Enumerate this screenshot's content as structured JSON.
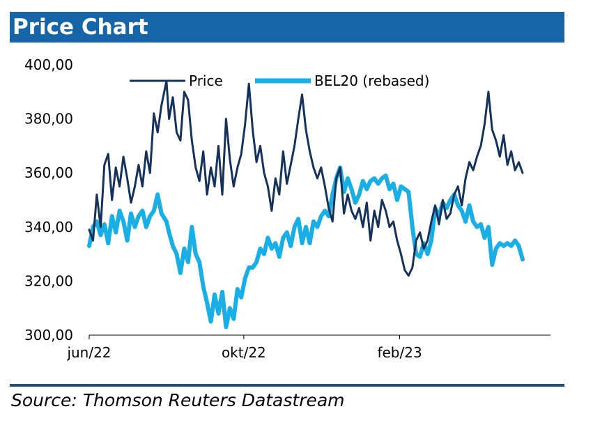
{
  "title": "Price Chart",
  "source": "Source: Thomson Reuters Datastream",
  "colors": {
    "title_bar": "#1565a8",
    "price": "#14325c",
    "bel20": "#18aee6",
    "rule": "#1f4e79"
  },
  "chart_data": {
    "type": "line",
    "ylim": [
      300,
      400
    ],
    "xlim": [
      "2022-06-01",
      "2023-05-31"
    ],
    "y_ticks": [
      "400,00",
      "380,00",
      "360,00",
      "340,00",
      "320,00",
      "300,00"
    ],
    "x_ticks": [
      {
        "label": "jun/22",
        "date": "2022-06-01"
      },
      {
        "label": "okt/22",
        "date": "2022-10-01"
      },
      {
        "label": "feb/23",
        "date": "2023-02-01"
      }
    ],
    "legend": "top",
    "grid": false,
    "series": [
      {
        "name": "Price",
        "color": "#14325c",
        "points": [
          [
            "2022-06-01",
            339
          ],
          [
            "2022-06-04",
            335
          ],
          [
            "2022-06-07",
            352
          ],
          [
            "2022-06-10",
            340
          ],
          [
            "2022-06-13",
            363
          ],
          [
            "2022-06-16",
            367
          ],
          [
            "2022-06-19",
            350
          ],
          [
            "2022-06-22",
            362
          ],
          [
            "2022-06-25",
            355
          ],
          [
            "2022-06-28",
            366
          ],
          [
            "2022-07-01",
            358
          ],
          [
            "2022-07-04",
            349
          ],
          [
            "2022-07-07",
            355
          ],
          [
            "2022-07-10",
            363
          ],
          [
            "2022-07-13",
            355
          ],
          [
            "2022-07-16",
            368
          ],
          [
            "2022-07-19",
            360
          ],
          [
            "2022-07-22",
            382
          ],
          [
            "2022-07-25",
            375
          ],
          [
            "2022-07-28",
            385
          ],
          [
            "2022-08-01",
            394
          ],
          [
            "2022-08-03",
            380
          ],
          [
            "2022-08-06",
            388
          ],
          [
            "2022-08-09",
            375
          ],
          [
            "2022-08-12",
            372
          ],
          [
            "2022-08-15",
            390
          ],
          [
            "2022-08-18",
            387
          ],
          [
            "2022-08-21",
            372
          ],
          [
            "2022-08-24",
            362
          ],
          [
            "2022-08-27",
            357
          ],
          [
            "2022-08-30",
            368
          ],
          [
            "2022-09-02",
            352
          ],
          [
            "2022-09-05",
            362
          ],
          [
            "2022-09-08",
            355
          ],
          [
            "2022-09-11",
            370
          ],
          [
            "2022-09-14",
            352
          ],
          [
            "2022-09-17",
            380
          ],
          [
            "2022-09-20",
            365
          ],
          [
            "2022-09-23",
            355
          ],
          [
            "2022-09-26",
            362
          ],
          [
            "2022-09-29",
            367
          ],
          [
            "2022-10-02",
            378
          ],
          [
            "2022-10-05",
            393
          ],
          [
            "2022-10-08",
            376
          ],
          [
            "2022-10-11",
            364
          ],
          [
            "2022-10-14",
            370
          ],
          [
            "2022-10-17",
            360
          ],
          [
            "2022-10-20",
            355
          ],
          [
            "2022-10-23",
            346
          ],
          [
            "2022-10-26",
            358
          ],
          [
            "2022-10-29",
            352
          ],
          [
            "2022-11-01",
            368
          ],
          [
            "2022-11-04",
            356
          ],
          [
            "2022-11-07",
            363
          ],
          [
            "2022-11-10",
            370
          ],
          [
            "2022-11-13",
            380
          ],
          [
            "2022-11-16",
            389
          ],
          [
            "2022-11-19",
            376
          ],
          [
            "2022-11-22",
            368
          ],
          [
            "2022-11-25",
            362
          ],
          [
            "2022-11-28",
            358
          ],
          [
            "2022-12-01",
            362
          ],
          [
            "2022-12-04",
            355
          ],
          [
            "2022-12-07",
            347
          ],
          [
            "2022-12-10",
            342
          ],
          [
            "2022-12-13",
            358
          ],
          [
            "2022-12-16",
            362
          ],
          [
            "2022-12-19",
            345
          ],
          [
            "2022-12-22",
            352
          ],
          [
            "2022-12-25",
            346
          ],
          [
            "2022-12-28",
            343
          ],
          [
            "2022-12-31",
            347
          ],
          [
            "2023-01-03",
            340
          ],
          [
            "2023-01-06",
            349
          ],
          [
            "2023-01-09",
            335
          ],
          [
            "2023-01-12",
            346
          ],
          [
            "2023-01-15",
            340
          ],
          [
            "2023-01-18",
            350
          ],
          [
            "2023-01-21",
            346
          ],
          [
            "2023-01-24",
            340
          ],
          [
            "2023-01-27",
            342
          ],
          [
            "2023-01-30",
            335
          ],
          [
            "2023-02-02",
            330
          ],
          [
            "2023-02-05",
            324
          ],
          [
            "2023-02-08",
            322
          ],
          [
            "2023-02-11",
            325
          ],
          [
            "2023-02-14",
            335
          ],
          [
            "2023-02-17",
            338
          ],
          [
            "2023-02-20",
            332
          ],
          [
            "2023-02-23",
            335
          ],
          [
            "2023-02-26",
            342
          ],
          [
            "2023-03-01",
            348
          ],
          [
            "2023-03-04",
            341
          ],
          [
            "2023-03-07",
            350
          ],
          [
            "2023-03-10",
            343
          ],
          [
            "2023-03-13",
            345
          ],
          [
            "2023-03-16",
            352
          ],
          [
            "2023-03-19",
            355
          ],
          [
            "2023-03-22",
            348
          ],
          [
            "2023-03-25",
            358
          ],
          [
            "2023-03-28",
            364
          ],
          [
            "2023-03-31",
            361
          ],
          [
            "2023-04-03",
            366
          ],
          [
            "2023-04-06",
            370
          ],
          [
            "2023-04-09",
            378
          ],
          [
            "2023-04-12",
            390
          ],
          [
            "2023-04-15",
            376
          ],
          [
            "2023-04-18",
            372
          ],
          [
            "2023-04-21",
            366
          ],
          [
            "2023-04-24",
            374
          ],
          [
            "2023-04-27",
            363
          ],
          [
            "2023-04-30",
            368
          ],
          [
            "2023-05-03",
            361
          ],
          [
            "2023-05-06",
            364
          ],
          [
            "2023-05-09",
            360
          ]
        ]
      },
      {
        "name": "BEL20 (rebased)",
        "color": "#18aee6",
        "points": [
          [
            "2022-06-01",
            333
          ],
          [
            "2022-06-04",
            340
          ],
          [
            "2022-06-07",
            342
          ],
          [
            "2022-06-10",
            337
          ],
          [
            "2022-06-13",
            341
          ],
          [
            "2022-06-16",
            334
          ],
          [
            "2022-06-19",
            344
          ],
          [
            "2022-06-22",
            338
          ],
          [
            "2022-06-25",
            346
          ],
          [
            "2022-06-28",
            342
          ],
          [
            "2022-07-01",
            335
          ],
          [
            "2022-07-04",
            345
          ],
          [
            "2022-07-07",
            340
          ],
          [
            "2022-07-10",
            344
          ],
          [
            "2022-07-13",
            346
          ],
          [
            "2022-07-16",
            340
          ],
          [
            "2022-07-19",
            344
          ],
          [
            "2022-07-22",
            346
          ],
          [
            "2022-07-25",
            352
          ],
          [
            "2022-07-28",
            345
          ],
          [
            "2022-08-01",
            342
          ],
          [
            "2022-08-03",
            338
          ],
          [
            "2022-08-06",
            333
          ],
          [
            "2022-08-09",
            330
          ],
          [
            "2022-08-12",
            323
          ],
          [
            "2022-08-15",
            332
          ],
          [
            "2022-08-18",
            327
          ],
          [
            "2022-08-21",
            340
          ],
          [
            "2022-08-24",
            330
          ],
          [
            "2022-08-27",
            327
          ],
          [
            "2022-08-30",
            318
          ],
          [
            "2022-09-02",
            312
          ],
          [
            "2022-09-05",
            305
          ],
          [
            "2022-09-08",
            315
          ],
          [
            "2022-09-11",
            308
          ],
          [
            "2022-09-14",
            316
          ],
          [
            "2022-09-17",
            303
          ],
          [
            "2022-09-20",
            310
          ],
          [
            "2022-09-23",
            306
          ],
          [
            "2022-09-26",
            317
          ],
          [
            "2022-09-29",
            314
          ],
          [
            "2022-10-02",
            321
          ],
          [
            "2022-10-05",
            325
          ],
          [
            "2022-10-08",
            325
          ],
          [
            "2022-10-11",
            327
          ],
          [
            "2022-10-14",
            332
          ],
          [
            "2022-10-17",
            330
          ],
          [
            "2022-10-20",
            336
          ],
          [
            "2022-10-23",
            332
          ],
          [
            "2022-10-26",
            334
          ],
          [
            "2022-10-29",
            329
          ],
          [
            "2022-11-01",
            336
          ],
          [
            "2022-11-04",
            338
          ],
          [
            "2022-11-07",
            333
          ],
          [
            "2022-11-10",
            340
          ],
          [
            "2022-11-13",
            343
          ],
          [
            "2022-11-16",
            334
          ],
          [
            "2022-11-19",
            340
          ],
          [
            "2022-11-22",
            334
          ],
          [
            "2022-11-25",
            342
          ],
          [
            "2022-11-28",
            340
          ],
          [
            "2022-12-01",
            344
          ],
          [
            "2022-12-04",
            346
          ],
          [
            "2022-12-07",
            344
          ],
          [
            "2022-12-10",
            352
          ],
          [
            "2022-12-13",
            358
          ],
          [
            "2022-12-16",
            362
          ],
          [
            "2022-12-19",
            353
          ],
          [
            "2022-12-22",
            358
          ],
          [
            "2022-12-25",
            354
          ],
          [
            "2022-12-28",
            349
          ],
          [
            "2022-12-31",
            352
          ],
          [
            "2023-01-03",
            357
          ],
          [
            "2023-01-06",
            354
          ],
          [
            "2023-01-09",
            357
          ],
          [
            "2023-01-12",
            358
          ],
          [
            "2023-01-15",
            356
          ],
          [
            "2023-01-18",
            358
          ],
          [
            "2023-01-21",
            359
          ],
          [
            "2023-01-24",
            354
          ],
          [
            "2023-01-27",
            356
          ],
          [
            "2023-01-30",
            350
          ],
          [
            "2023-02-02",
            355
          ],
          [
            "2023-02-05",
            354
          ],
          [
            "2023-02-08",
            353
          ],
          [
            "2023-02-11",
            340
          ],
          [
            "2023-02-14",
            330
          ],
          [
            "2023-02-17",
            329
          ],
          [
            "2023-02-20",
            334
          ],
          [
            "2023-02-23",
            330
          ],
          [
            "2023-02-26",
            335
          ],
          [
            "2023-03-01",
            347
          ],
          [
            "2023-03-04",
            344
          ],
          [
            "2023-03-07",
            349
          ],
          [
            "2023-03-10",
            347
          ],
          [
            "2023-03-13",
            350
          ],
          [
            "2023-03-16",
            352
          ],
          [
            "2023-03-19",
            348
          ],
          [
            "2023-03-22",
            346
          ],
          [
            "2023-03-25",
            342
          ],
          [
            "2023-03-28",
            348
          ],
          [
            "2023-03-31",
            342
          ],
          [
            "2023-04-03",
            340
          ],
          [
            "2023-04-06",
            341
          ],
          [
            "2023-04-09",
            336
          ],
          [
            "2023-04-12",
            340
          ],
          [
            "2023-04-15",
            326
          ],
          [
            "2023-04-18",
            332
          ],
          [
            "2023-04-21",
            334
          ],
          [
            "2023-04-24",
            333
          ],
          [
            "2023-04-27",
            334
          ],
          [
            "2023-04-30",
            333
          ],
          [
            "2023-05-03",
            335
          ],
          [
            "2023-05-06",
            333
          ],
          [
            "2023-05-09",
            328
          ]
        ]
      }
    ]
  }
}
